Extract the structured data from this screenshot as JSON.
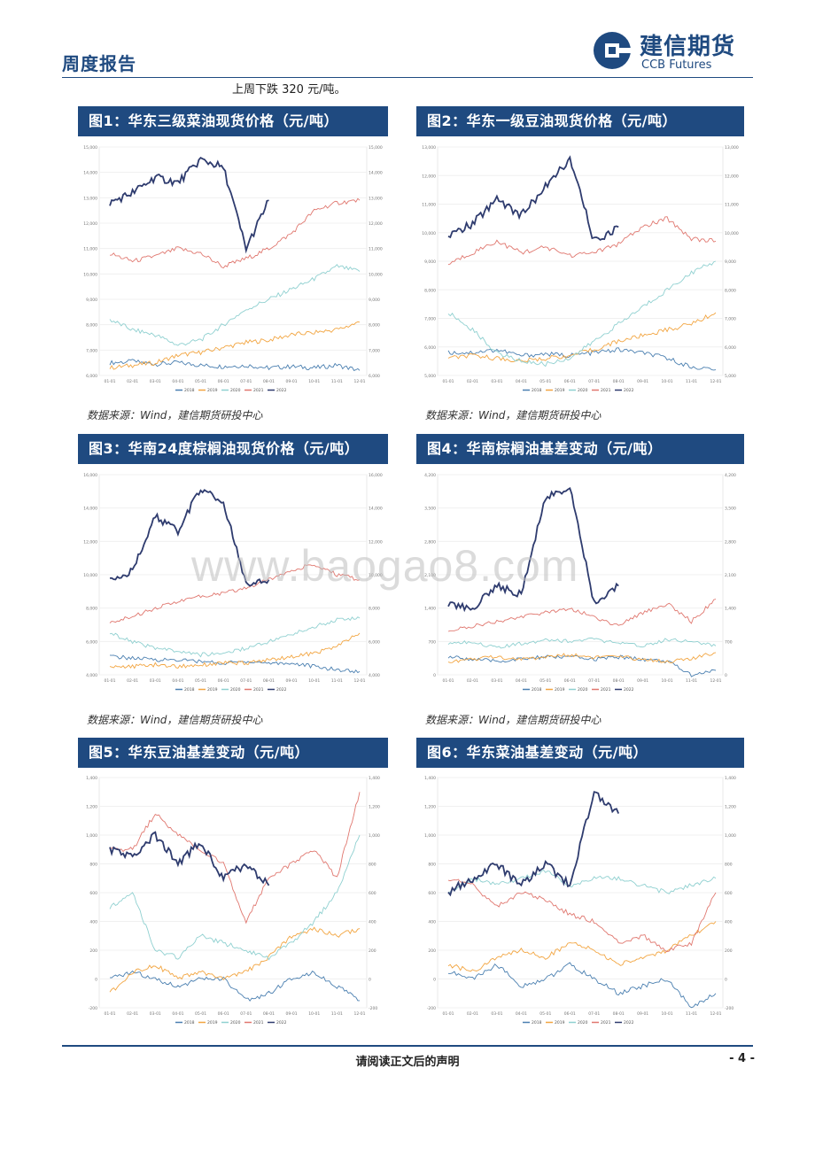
{
  "header": {
    "title": "周度报告",
    "logo_cn": "建信期货",
    "logo_en": "CCB Futures"
  },
  "intro_text": "上周下跌 320 元/吨。",
  "source_text": "数据来源：Wind，建信期货研投中心",
  "figures": [
    {
      "title": "图1：华东三级菜油现货价格（元/吨）"
    },
    {
      "title": "图2：华东一级豆油现货价格（元/吨）"
    },
    {
      "title": "图3：华南24度棕榈油现货价格（元/吨）"
    },
    {
      "title": "图4：华南棕榈油基差变动（元/吨）"
    },
    {
      "title": "图5：华东豆油基差变动（元/吨）"
    },
    {
      "title": "图6：华东菜油基差变动（元/吨）"
    }
  ],
  "legend": [
    "2018",
    "2019",
    "2020",
    "2021",
    "2022"
  ],
  "series_colors": {
    "2018": "#4a7fb0",
    "2019": "#f2a541",
    "2020": "#8fd0d0",
    "2021": "#e0776f",
    "2022": "#2e3b6e"
  },
  "x_ticks": [
    "01-01",
    "02-01",
    "03-01",
    "04-01",
    "05-01",
    "06-01",
    "07-01",
    "08-01",
    "09-01",
    "10-01",
    "11-01",
    "12-01"
  ],
  "chart_data": [
    {
      "type": "line",
      "title": "图1：华东三级菜油现货价格（元/吨）",
      "ylim": [
        6000,
        15000
      ],
      "y_ticks": [
        "15,000",
        "14,000",
        "13,000",
        "12,000",
        "11,000",
        "10,000",
        "9,000",
        "8,000",
        "7,000",
        "6,000"
      ],
      "series": [
        {
          "name": "2018",
          "values": [
            6500,
            6550,
            6450,
            6500,
            6400,
            6350,
            6400,
            6300,
            6350,
            6300,
            6400,
            6200
          ]
        },
        {
          "name": "2019",
          "values": [
            6300,
            6400,
            6500,
            6800,
            6900,
            7100,
            7300,
            7400,
            7600,
            7700,
            7800,
            8100
          ]
        },
        {
          "name": "2020",
          "values": [
            8200,
            7800,
            7600,
            7200,
            7400,
            8000,
            8600,
            9000,
            9400,
            9800,
            10300,
            10100
          ]
        },
        {
          "name": "2021",
          "values": [
            10800,
            10500,
            10700,
            11000,
            10800,
            10300,
            10600,
            11000,
            11600,
            12500,
            12800,
            12900
          ]
        },
        {
          "name": "2022",
          "values": [
            12800,
            13200,
            13800,
            13600,
            14500,
            14200,
            11000,
            12900
          ]
        }
      ]
    },
    {
      "type": "line",
      "title": "图2：华东一级豆油现货价格（元/吨）",
      "ylim": [
        5000,
        13000
      ],
      "y_ticks": [
        "13,000",
        "12,000",
        "11,000",
        "10,000",
        "9,000",
        "8,000",
        "7,000",
        "6,000",
        "5,000"
      ],
      "series": [
        {
          "name": "2018",
          "values": [
            5800,
            5800,
            5900,
            5700,
            5750,
            5700,
            5800,
            5900,
            5800,
            5600,
            5300,
            5200
          ]
        },
        {
          "name": "2019",
          "values": [
            5600,
            5700,
            5600,
            5500,
            5600,
            5700,
            5900,
            6200,
            6400,
            6600,
            6800,
            7200
          ]
        },
        {
          "name": "2020",
          "values": [
            7200,
            6600,
            5800,
            5500,
            5400,
            5600,
            6200,
            6800,
            7400,
            8000,
            8600,
            9000
          ]
        },
        {
          "name": "2021",
          "values": [
            8900,
            9300,
            9700,
            9300,
            9500,
            9200,
            9300,
            9600,
            10200,
            10500,
            9800,
            9700
          ]
        },
        {
          "name": "2022",
          "values": [
            9900,
            10300,
            11200,
            10600,
            11600,
            12600,
            9700,
            10200
          ]
        }
      ]
    },
    {
      "type": "line",
      "title": "图3：华南24度棕榈油现货价格（元/吨）",
      "ylim": [
        4000,
        16000
      ],
      "y_ticks": [
        "16,000",
        "14,000",
        "12,000",
        "10,000",
        "8,000",
        "6,000",
        "4,000"
      ],
      "series": [
        {
          "name": "2018",
          "values": [
            5100,
            5000,
            4900,
            4900,
            4800,
            4700,
            4800,
            4700,
            4700,
            4500,
            4300,
            4200
          ]
        },
        {
          "name": "2019",
          "values": [
            4500,
            4500,
            4600,
            4500,
            4600,
            4700,
            4700,
            4900,
            5100,
            5300,
            5700,
            6500
          ]
        },
        {
          "name": "2020",
          "values": [
            6500,
            6000,
            5600,
            5400,
            5200,
            5300,
            5600,
            6000,
            6400,
            6900,
            7300,
            7400
          ]
        },
        {
          "name": "2021",
          "values": [
            7100,
            7500,
            8000,
            8400,
            8700,
            8900,
            9200,
            9700,
            10300,
            10600,
            10000,
            9700
          ]
        },
        {
          "name": "2022",
          "values": [
            9800,
            10200,
            13500,
            12600,
            15200,
            14300,
            9500,
            9700
          ]
        }
      ]
    },
    {
      "type": "line",
      "title": "图4：华南棕榈油基差变动（元/吨）",
      "ylim": [
        -300,
        4200
      ],
      "y_ticks": [
        "4,200",
        "3,500",
        "2,800",
        "2,100",
        "1,400",
        "700",
        "0"
      ],
      "series": [
        {
          "name": "2018",
          "values": [
            100,
            50,
            0,
            50,
            100,
            100,
            50,
            100,
            50,
            0,
            -300,
            -200
          ]
        },
        {
          "name": "2019",
          "values": [
            0,
            50,
            100,
            50,
            100,
            150,
            100,
            100,
            50,
            0,
            50,
            200
          ]
        },
        {
          "name": "2020",
          "values": [
            400,
            450,
            300,
            400,
            500,
            450,
            500,
            400,
            350,
            500,
            450,
            350
          ]
        },
        {
          "name": "2021",
          "values": [
            700,
            800,
            900,
            1000,
            1100,
            1200,
            1000,
            800,
            1100,
            1300,
            900,
            1400
          ]
        },
        {
          "name": "2022",
          "values": [
            1300,
            1200,
            1700,
            1500,
            3700,
            3900,
            1300,
            1700
          ]
        }
      ]
    },
    {
      "type": "line",
      "title": "图5：华东豆油基差变动（元/吨）",
      "ylim": [
        -200,
        1400
      ],
      "y_ticks": [
        "1,400",
        "1,200",
        "1,000",
        "800",
        "600",
        "400",
        "200",
        "0",
        "-200"
      ],
      "series": [
        {
          "name": "2018",
          "values": [
            0,
            50,
            0,
            -50,
            0,
            0,
            -150,
            -100,
            0,
            50,
            -50,
            -150
          ]
        },
        {
          "name": "2019",
          "values": [
            -100,
            50,
            100,
            0,
            50,
            0,
            50,
            150,
            300,
            350,
            300,
            350
          ]
        },
        {
          "name": "2020",
          "values": [
            500,
            600,
            200,
            150,
            300,
            250,
            200,
            150,
            250,
            400,
            600,
            1000
          ]
        },
        {
          "name": "2021",
          "values": [
            900,
            900,
            1150,
            1000,
            900,
            800,
            400,
            700,
            800,
            900,
            700,
            1300
          ]
        },
        {
          "name": "2022",
          "values": [
            900,
            850,
            1000,
            800,
            950,
            700,
            800,
            650
          ]
        }
      ]
    },
    {
      "type": "line",
      "title": "图6：华东菜油基差变动（元/吨）",
      "ylim": [
        -200,
        1400
      ],
      "y_ticks": [
        "1,400",
        "1,200",
        "1,000",
        "800",
        "600",
        "400",
        "200",
        "0",
        "-200"
      ],
      "series": [
        {
          "name": "2018",
          "values": [
            50,
            0,
            100,
            -50,
            0,
            100,
            0,
            -100,
            -50,
            0,
            -200,
            -100
          ]
        },
        {
          "name": "2019",
          "values": [
            100,
            50,
            150,
            200,
            150,
            250,
            200,
            100,
            150,
            200,
            300,
            400
          ]
        },
        {
          "name": "2020",
          "values": [
            600,
            700,
            650,
            700,
            750,
            650,
            700,
            700,
            650,
            600,
            650,
            700
          ]
        },
        {
          "name": "2021",
          "values": [
            700,
            650,
            500,
            600,
            550,
            450,
            400,
            250,
            300,
            200,
            250,
            600
          ]
        },
        {
          "name": "2022",
          "values": [
            600,
            700,
            800,
            650,
            800,
            650,
            1300,
            1150
          ]
        }
      ]
    }
  ],
  "footer": {
    "disclaimer": "请阅读正文后的声明",
    "page": "- 4 -"
  },
  "watermark": "www.baogao8.com"
}
